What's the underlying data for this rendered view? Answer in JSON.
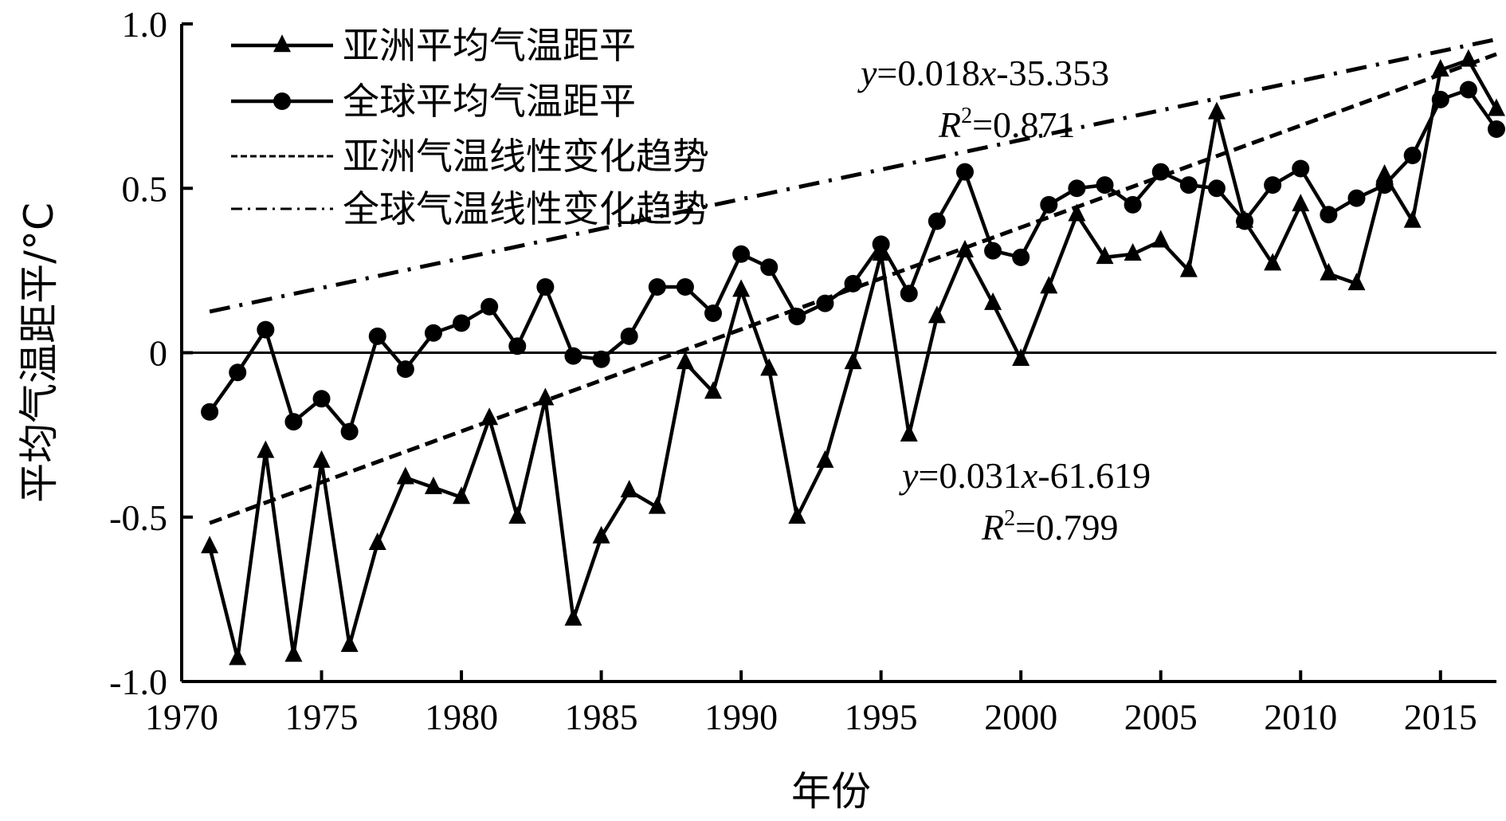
{
  "chart_data": {
    "type": "line",
    "title": "",
    "xlabel": "年份",
    "ylabel": "平均气温距平/°C",
    "xlim": [
      1970,
      2017
    ],
    "ylim": [
      -1.0,
      1.0
    ],
    "x_ticks": [
      1970,
      1975,
      1980,
      1985,
      1990,
      1995,
      2000,
      2005,
      2010,
      2015
    ],
    "y_ticks": [
      -1.0,
      -0.5,
      0,
      0.5,
      1.0
    ],
    "y_tick_labels": [
      "-1.0",
      "-0.5",
      "0",
      "0.5",
      "1.0"
    ],
    "x": [
      1971,
      1972,
      1973,
      1974,
      1975,
      1976,
      1977,
      1978,
      1979,
      1980,
      1981,
      1982,
      1983,
      1984,
      1985,
      1986,
      1987,
      1988,
      1989,
      1990,
      1991,
      1992,
      1993,
      1994,
      1995,
      1996,
      1997,
      1998,
      1999,
      2000,
      2001,
      2002,
      2003,
      2004,
      2005,
      2006,
      2007,
      2008,
      2009,
      2010,
      2011,
      2012,
      2013,
      2014,
      2015,
      2016,
      2017
    ],
    "series": [
      {
        "name": "亚洲平均气温距平",
        "marker": "triangle",
        "values": [
          -0.59,
          -0.93,
          -0.3,
          -0.92,
          -0.33,
          -0.89,
          -0.58,
          -0.38,
          -0.41,
          -0.44,
          -0.2,
          -0.5,
          -0.14,
          -0.81,
          -0.56,
          -0.42,
          -0.47,
          -0.03,
          -0.12,
          0.19,
          -0.05,
          -0.5,
          -0.33,
          -0.03,
          0.3,
          -0.25,
          0.11,
          0.31,
          0.15,
          -0.02,
          0.2,
          0.42,
          0.29,
          0.3,
          0.34,
          0.25,
          0.73,
          0.4,
          0.27,
          0.45,
          0.24,
          0.21,
          0.54,
          0.4,
          0.86,
          0.89,
          0.74
        ]
      },
      {
        "name": "全球平均气温距平",
        "marker": "circle",
        "values": [
          -0.18,
          -0.06,
          0.07,
          -0.21,
          -0.14,
          -0.24,
          0.05,
          -0.05,
          0.06,
          0.09,
          0.14,
          0.02,
          0.2,
          -0.01,
          -0.02,
          0.05,
          0.2,
          0.2,
          0.12,
          0.3,
          0.26,
          0.11,
          0.15,
          0.21,
          0.33,
          0.18,
          0.4,
          0.55,
          0.31,
          0.29,
          0.45,
          0.5,
          0.51,
          0.45,
          0.55,
          0.51,
          0.5,
          0.4,
          0.51,
          0.56,
          0.42,
          0.47,
          0.51,
          0.6,
          0.77,
          0.8,
          0.68
        ]
      }
    ],
    "trends": [
      {
        "name": "亚洲气温线性变化趋势",
        "style": "dashed",
        "slope": 0.031,
        "intercept": -61.619,
        "equation_prefix": "y",
        "equation_rest": "=0.031",
        "equation_var": "x",
        "equation_const": "-61.619",
        "r2_prefix": "R",
        "r2_sup": "2",
        "r2_value": "=0.799"
      },
      {
        "name": "全球气温线性变化趋势",
        "style": "dash-dot",
        "slope": 0.018,
        "intercept": -35.353,
        "equation_prefix": "y",
        "equation_rest": "=0.018",
        "equation_var": "x",
        "equation_const": "-35.353",
        "r2_prefix": "R",
        "r2_sup": "2",
        "r2_value": "=0.871"
      }
    ],
    "zero_line": true,
    "grid": false,
    "legend_position": "top-left",
    "colors": {
      "line": "#000000",
      "background": "#ffffff"
    }
  }
}
